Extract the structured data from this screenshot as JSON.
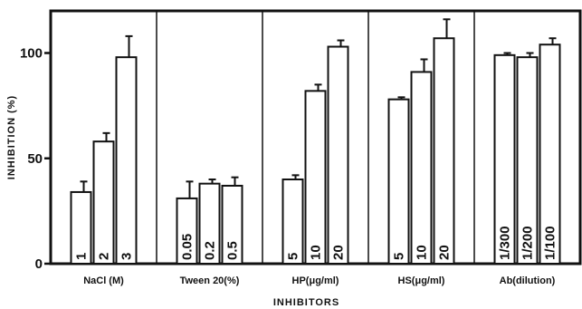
{
  "chart_data": {
    "type": "bar",
    "ylabel": "INHIBITION (%)",
    "xlabel": "INHIBITORS",
    "ylim": [
      0,
      120
    ],
    "yticks": [
      0,
      50,
      100
    ],
    "grid": false,
    "groups": [
      {
        "label": "NaCl (M)",
        "bars": [
          {
            "label": "1",
            "value": 34,
            "error": 5
          },
          {
            "label": "2",
            "value": 58,
            "error": 4
          },
          {
            "label": "3",
            "value": 98,
            "error": 10
          }
        ]
      },
      {
        "label": "Tween 20(%)",
        "bars": [
          {
            "label": "0.05",
            "value": 31,
            "error": 8
          },
          {
            "label": "0.2",
            "value": 38,
            "error": 2
          },
          {
            "label": "0.5",
            "value": 37,
            "error": 4
          }
        ]
      },
      {
        "label": "HP(μg/ml)",
        "bars": [
          {
            "label": "5",
            "value": 40,
            "error": 2
          },
          {
            "label": "10",
            "value": 82,
            "error": 3
          },
          {
            "label": "20",
            "value": 103,
            "error": 3
          }
        ]
      },
      {
        "label": "HS(μg/ml)",
        "bars": [
          {
            "label": "5",
            "value": 78,
            "error": 1
          },
          {
            "label": "10",
            "value": 91,
            "error": 6
          },
          {
            "label": "20",
            "value": 107,
            "error": 9
          }
        ]
      },
      {
        "label": "Ab(dilution)",
        "bars": [
          {
            "label": "1/300",
            "value": 99,
            "error": 1
          },
          {
            "label": "1/200",
            "value": 98,
            "error": 2
          },
          {
            "label": "1/100",
            "value": 104,
            "error": 3
          }
        ]
      }
    ]
  }
}
